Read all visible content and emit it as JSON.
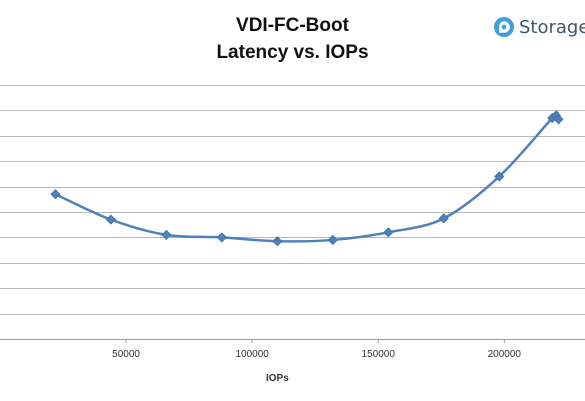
{
  "chart_data": {
    "type": "line",
    "title": "VDI-FC-Boot",
    "subtitle": "Latency vs. IOPs",
    "xlabel": "IOPs",
    "ylabel": "",
    "x_ticks": [
      50000,
      100000,
      150000,
      200000
    ],
    "x_tick_labels": [
      "50000",
      "100000",
      "150000",
      "200000"
    ],
    "xlim": [
      0,
      232000
    ],
    "ylim": [
      0,
      10
    ],
    "y_gridlines": [
      1,
      2,
      3,
      4,
      5,
      6,
      7,
      8,
      9,
      10
    ],
    "y_tick_labels_shown": false,
    "grid": true,
    "legend": "none",
    "series": [
      {
        "color": "#4f81bd",
        "marker": "diamond",
        "smooth": true,
        "points": [
          {
            "x": 22000,
            "y": 5.7
          },
          {
            "x": 44000,
            "y": 4.7
          },
          {
            "x": 66000,
            "y": 4.1
          },
          {
            "x": 88000,
            "y": 4.0
          },
          {
            "x": 110000,
            "y": 3.85
          },
          {
            "x": 132000,
            "y": 3.9
          },
          {
            "x": 154000,
            "y": 4.2
          },
          {
            "x": 176000,
            "y": 4.75
          },
          {
            "x": 198000,
            "y": 6.4
          },
          {
            "x": 219000,
            "y": 8.7
          },
          {
            "x": 220500,
            "y": 8.8
          },
          {
            "x": 221500,
            "y": 8.65
          }
        ]
      }
    ]
  },
  "logo": {
    "text": "Storage",
    "color": "#3d5669",
    "accent": "#3ea0d6"
  }
}
